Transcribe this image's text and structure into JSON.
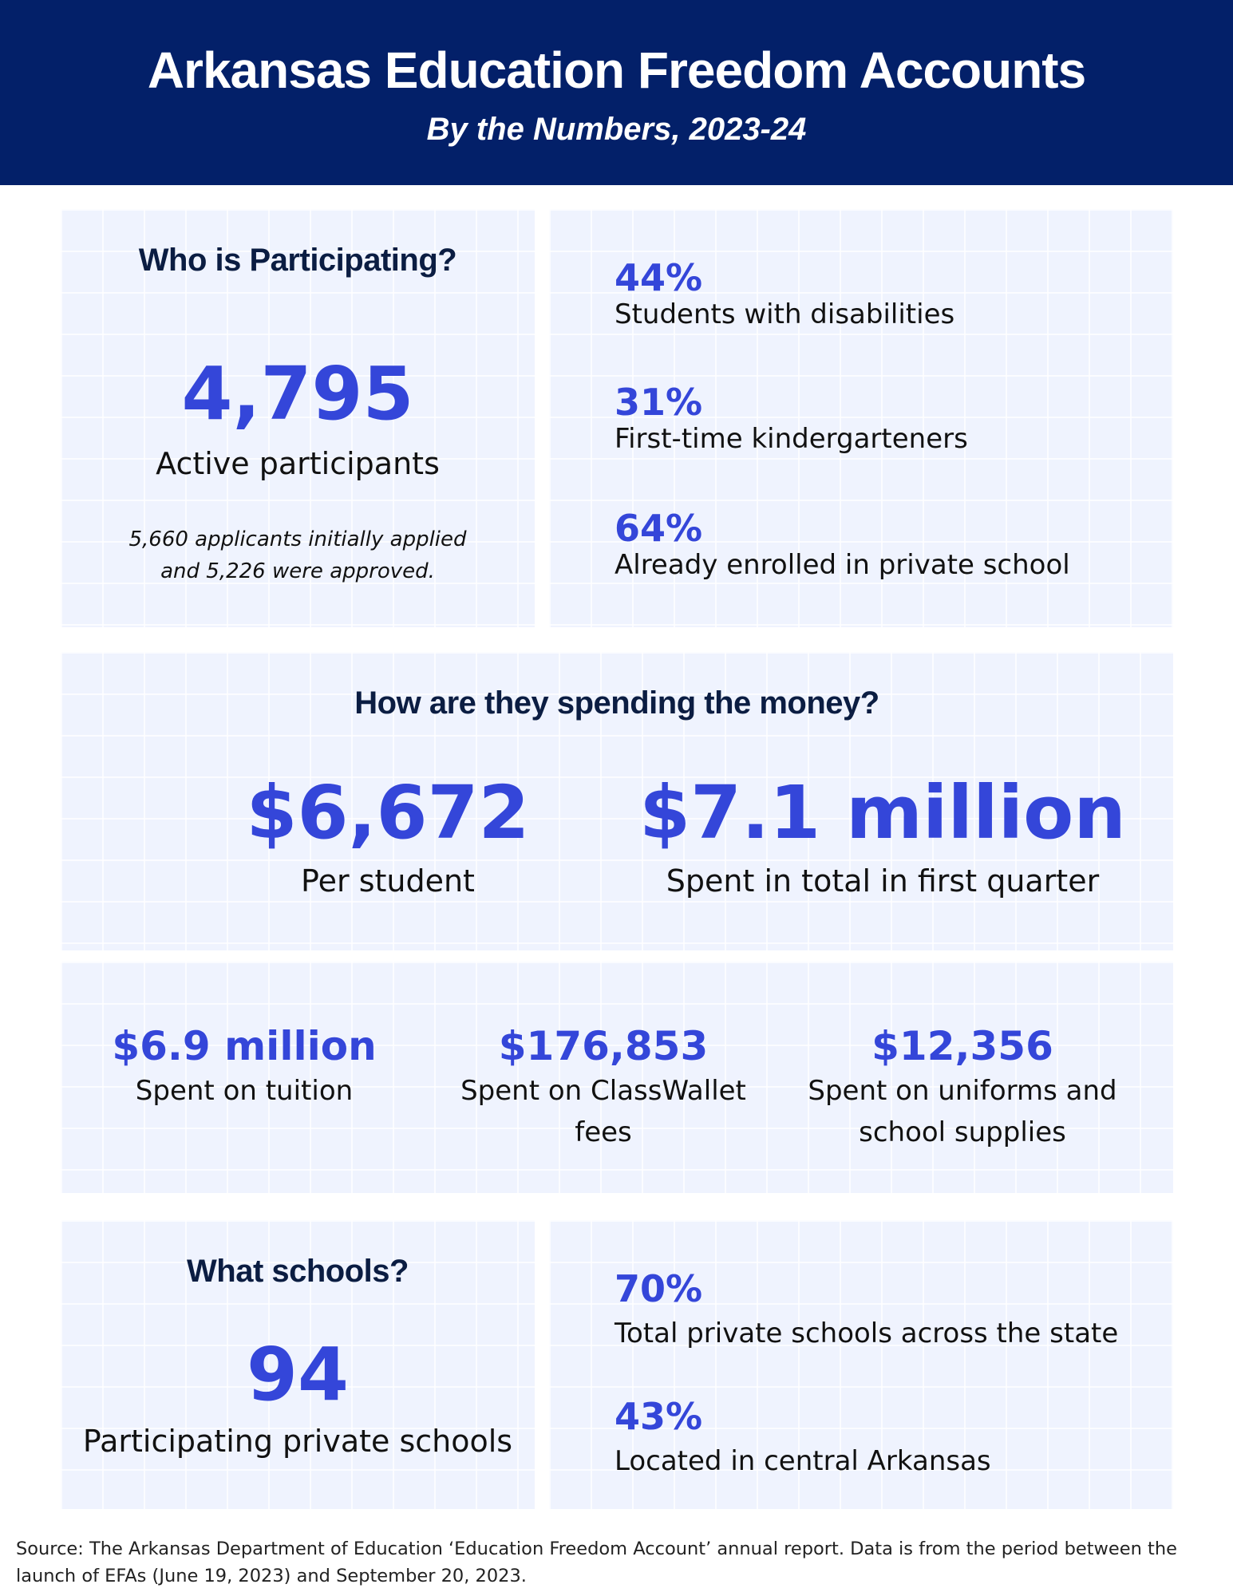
{
  "header": {
    "title": "Arkansas Education Freedom Accounts",
    "subtitle": "By the Numbers, 2023-24"
  },
  "participation": {
    "heading": "Who is Participating?",
    "big_value": "4,795",
    "big_label": "Active participants",
    "note_line1": "5,660 applicants initially applied",
    "note_line2": "and 5,226 were approved.",
    "stats": [
      {
        "value": "44%",
        "label": "Students with disabilities"
      },
      {
        "value": "31%",
        "label": "First-time kindergarteners"
      },
      {
        "value": "64%",
        "label": "Already enrolled in private school"
      }
    ]
  },
  "spending": {
    "heading": "How are they spending the money?",
    "per_student_value": "$6,672",
    "per_student_label": "Per student",
    "total_value": "$7.1 million",
    "total_label": "Spent in total in first quarter",
    "breakdown": [
      {
        "value": "$6.9 million",
        "label": "Spent on tuition"
      },
      {
        "value": "$176,853",
        "label": "Spent on ClassWallet fees"
      },
      {
        "value": "$12,356",
        "label": "Spent on uniforms and school supplies"
      }
    ]
  },
  "schools": {
    "heading": "What schools?",
    "big_value": "94",
    "big_label": "Participating private schools",
    "stats": [
      {
        "value": "70%",
        "label": "Total private schools across the state"
      },
      {
        "value": "43%",
        "label": "Located in central Arkansas"
      }
    ]
  },
  "source": "Source: The Arkansas Department of Education ‘Education Freedom Account’ annual report. Data is from the period between the launch of EFAs (June 19, 2023) and September 20, 2023.",
  "colors": {
    "header_bg": "#032069",
    "accent_blue": "#3446d9",
    "panel_bg": "#eff3fe",
    "heading_text": "#0b1d42"
  }
}
